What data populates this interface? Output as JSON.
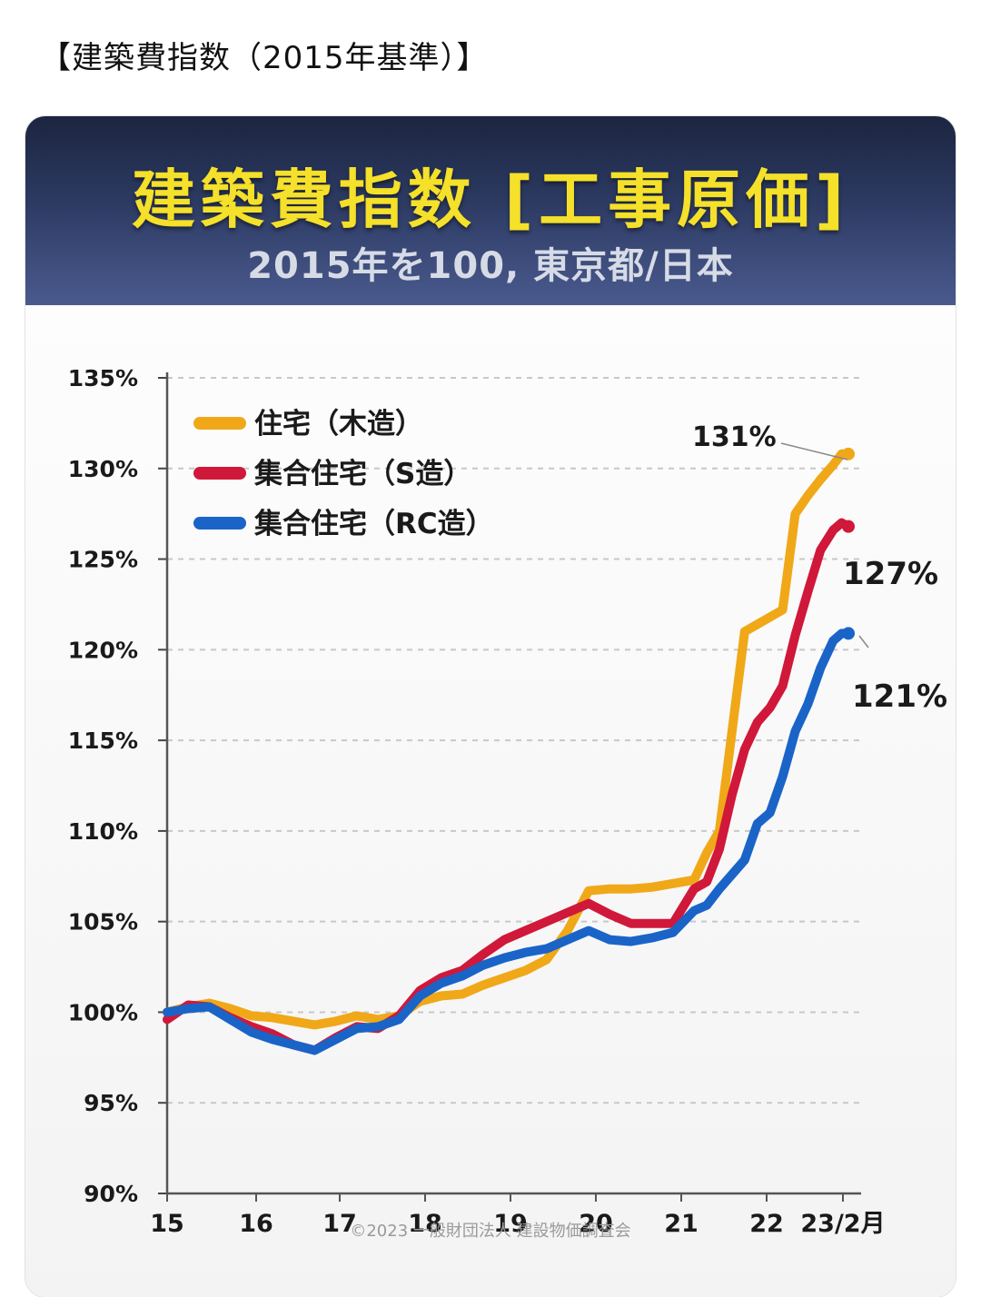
{
  "post": {
    "title": "【建築費指数（2015年基準）】"
  },
  "chart_data": {
    "type": "line",
    "title": "建築費指数 [工事原価]",
    "subtitle": "2015年を100, 東京都/日本",
    "credit": "©2023 一般財団法人 建設物価調査会",
    "xlabel": "",
    "ylabel": "",
    "x_ticks": [
      "15",
      "16",
      "17",
      "18",
      "19",
      "20",
      "21",
      "22",
      "23/2月"
    ],
    "y_ticks": [
      "90%",
      "95%",
      "100%",
      "105%",
      "110%",
      "115%",
      "120%",
      "125%",
      "130%",
      "135%"
    ],
    "ylim": [
      90,
      135
    ],
    "xlim": [
      2015.0,
      2023.08
    ],
    "grid": "horizontal-dashed",
    "legend_position": "top-left",
    "series": [
      {
        "name": "住宅（木造）",
        "color": "#f0a818",
        "end_label": "131%",
        "x": [
          2015.0,
          2015.25,
          2015.5,
          2015.75,
          2016.0,
          2016.25,
          2016.5,
          2016.75,
          2017.0,
          2017.25,
          2017.5,
          2017.75,
          2018.0,
          2018.25,
          2018.5,
          2018.75,
          2019.0,
          2019.25,
          2019.5,
          2019.75,
          2020.0,
          2020.25,
          2020.5,
          2020.75,
          2021.0,
          2021.25,
          2021.4,
          2021.55,
          2021.7,
          2021.85,
          2022.0,
          2022.15,
          2022.3,
          2022.45,
          2022.6,
          2022.75,
          2022.9,
          2023.0,
          2023.08
        ],
        "values": [
          100.0,
          100.3,
          100.5,
          100.2,
          99.8,
          99.7,
          99.5,
          99.3,
          99.5,
          99.8,
          99.6,
          99.8,
          100.6,
          100.9,
          101.0,
          101.5,
          101.9,
          102.3,
          102.9,
          104.5,
          106.7,
          106.8,
          106.8,
          106.9,
          107.1,
          107.3,
          108.8,
          110.0,
          115.5,
          121.0,
          121.4,
          121.8,
          122.2,
          127.5,
          128.5,
          129.4,
          130.2,
          130.8,
          130.8
        ]
      },
      {
        "name": "集合住宅（S造）",
        "color": "#d0183a",
        "end_label": "127%",
        "x": [
          2015.0,
          2015.25,
          2015.5,
          2015.75,
          2016.0,
          2016.25,
          2016.5,
          2016.75,
          2017.0,
          2017.25,
          2017.5,
          2017.75,
          2018.0,
          2018.25,
          2018.5,
          2018.75,
          2019.0,
          2019.25,
          2019.5,
          2019.75,
          2020.0,
          2020.25,
          2020.5,
          2020.75,
          2021.0,
          2021.25,
          2021.4,
          2021.55,
          2021.7,
          2021.85,
          2022.0,
          2022.15,
          2022.3,
          2022.45,
          2022.6,
          2022.75,
          2022.9,
          2023.0,
          2023.08
        ],
        "values": [
          99.6,
          100.4,
          100.3,
          99.7,
          99.2,
          98.8,
          98.2,
          97.9,
          98.6,
          99.2,
          99.1,
          99.8,
          101.2,
          101.9,
          102.3,
          103.2,
          104.0,
          104.5,
          105.0,
          105.5,
          106.0,
          105.4,
          104.9,
          104.9,
          104.9,
          106.8,
          107.2,
          109.0,
          112.0,
          114.5,
          116.0,
          116.8,
          118.0,
          120.8,
          123.2,
          125.5,
          126.6,
          127.0,
          126.8
        ]
      },
      {
        "name": "集合住宅（RC造）",
        "color": "#1a64c8",
        "end_label": "121%",
        "x": [
          2015.0,
          2015.25,
          2015.5,
          2015.75,
          2016.0,
          2016.25,
          2016.5,
          2016.75,
          2017.0,
          2017.25,
          2017.5,
          2017.75,
          2018.0,
          2018.25,
          2018.5,
          2018.75,
          2019.0,
          2019.25,
          2019.5,
          2019.75,
          2020.0,
          2020.25,
          2020.5,
          2020.75,
          2021.0,
          2021.25,
          2021.4,
          2021.55,
          2021.7,
          2021.85,
          2022.0,
          2022.15,
          2022.3,
          2022.45,
          2022.6,
          2022.75,
          2022.9,
          2023.0,
          2023.08
        ],
        "values": [
          100.0,
          100.2,
          100.3,
          99.6,
          98.9,
          98.5,
          98.2,
          97.9,
          98.5,
          99.1,
          99.2,
          99.6,
          100.9,
          101.6,
          102.0,
          102.6,
          103.0,
          103.3,
          103.5,
          104.0,
          104.5,
          104.0,
          103.9,
          104.1,
          104.4,
          105.6,
          105.9,
          106.8,
          107.6,
          108.4,
          110.4,
          111.0,
          113.0,
          115.5,
          117.0,
          119.0,
          120.5,
          120.9,
          120.9
        ]
      }
    ]
  }
}
